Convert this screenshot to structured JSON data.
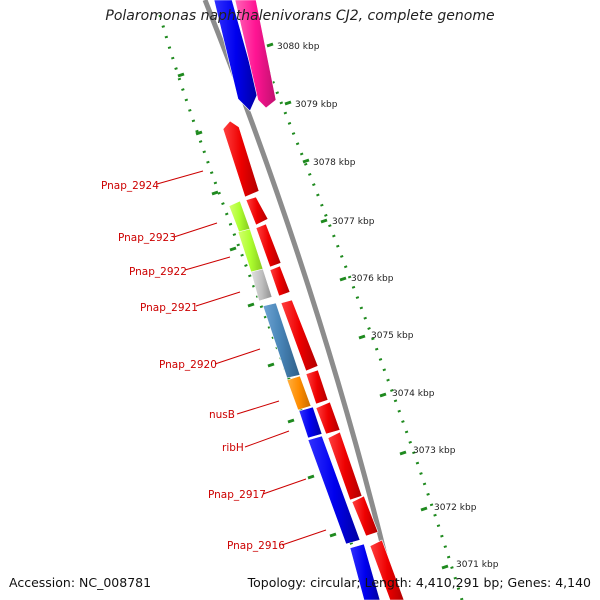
{
  "title": "Polaromonas naphthalenivorans CJ2, complete genome",
  "accession": "Accession: NC_008781",
  "summary": "Topology: circular; Length: 4,410,291 bp; Genes: 4,140",
  "ticks": [
    {
      "label": "3080 kbp"
    },
    {
      "label": "3079 kbp"
    },
    {
      "label": "3078 kbp"
    },
    {
      "label": "3077 kbp"
    },
    {
      "label": "3076 kbp"
    },
    {
      "label": "3075 kbp"
    },
    {
      "label": "3074 kbp"
    },
    {
      "label": "3073 kbp"
    },
    {
      "label": "3072 kbp"
    },
    {
      "label": "3071 kbp"
    }
  ],
  "gene_labels": [
    {
      "label": "Pnap_2924"
    },
    {
      "label": "Pnap_2923"
    },
    {
      "label": "Pnap_2922"
    },
    {
      "label": "Pnap_2921"
    },
    {
      "label": "Pnap_2920"
    },
    {
      "label": "nusB"
    },
    {
      "label": "ribH"
    },
    {
      "label": "Pnap_2917"
    },
    {
      "label": "Pnap_2916"
    }
  ],
  "colors": {
    "backbone": "#8c8c8c",
    "tick": "#1f8a1f",
    "label": "#cc0000",
    "gene_red": "#ee0000",
    "gene_blue": "#0000ee",
    "gene_pink": "#ff1493",
    "gene_lime": "#adff2f",
    "gene_gray": "#c0c0c0",
    "gene_steelblue": "#4682b4",
    "gene_orange": "#ff8c00"
  }
}
